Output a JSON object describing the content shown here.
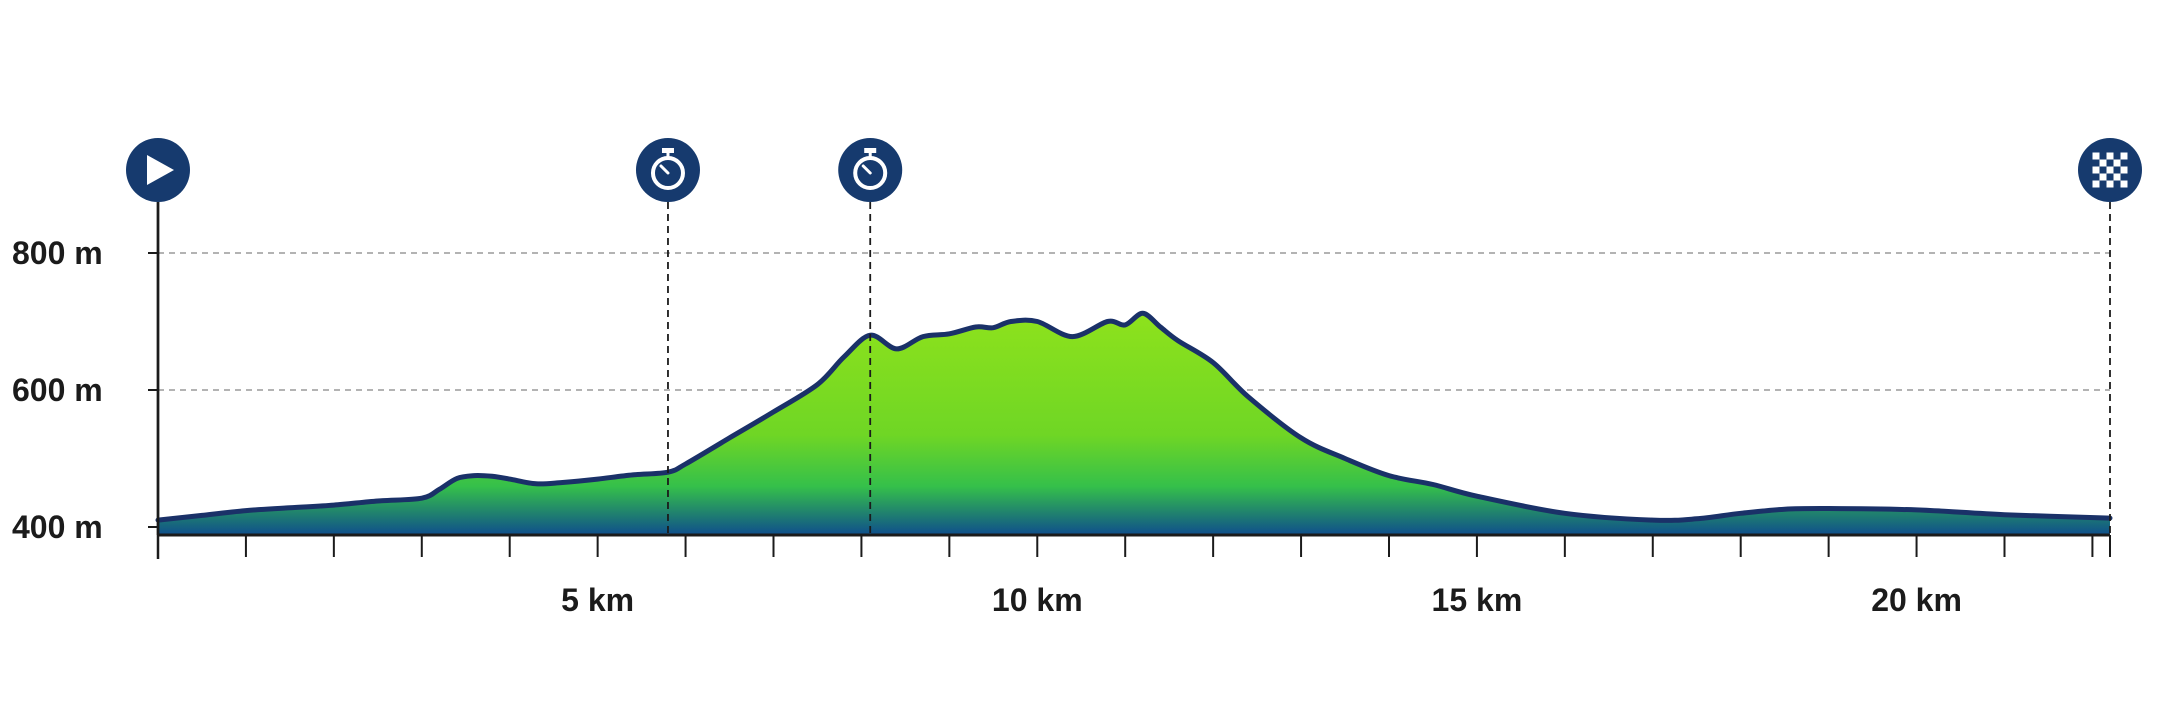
{
  "chart_data": {
    "type": "area",
    "title": "",
    "xlabel": "",
    "ylabel": "",
    "xlim": [
      0,
      22.2
    ],
    "ylim": [
      385,
      880
    ],
    "y_ticks": [
      400,
      600,
      800
    ],
    "y_tick_labels": [
      "400 m",
      "600 m",
      "800 m"
    ],
    "x_major_ticks": [
      5,
      10,
      15,
      20
    ],
    "x_tick_labels": [
      "5 km",
      "10 km",
      "15 km",
      "20 km"
    ],
    "x_minor_step": 1,
    "grid": "horizontal dashed at 600 m and 800 m",
    "series": [
      {
        "x": [
          0,
          0.5,
          1,
          1.5,
          2,
          2.5,
          3,
          3.2,
          3.4,
          3.6,
          3.8,
          4.0,
          4.3,
          4.6,
          5.0,
          5.4,
          5.8,
          6.0,
          6.5,
          7.0,
          7.5,
          7.8,
          8.1,
          8.4,
          8.7,
          9.0,
          9.3,
          9.5,
          9.7,
          10.0,
          10.4,
          10.8,
          11.0,
          11.2,
          11.4,
          11.6,
          12.0,
          12.4,
          13.0,
          13.5,
          14.0,
          14.5,
          15.0,
          16.0,
          17.0,
          17.5,
          18.0,
          18.5,
          19.0,
          20.0,
          21.0,
          22.2
        ],
        "values": [
          410,
          417,
          424,
          428,
          432,
          438,
          442,
          455,
          471,
          475,
          474,
          470,
          463,
          465,
          470,
          476,
          480,
          492,
          530,
          568,
          608,
          648,
          680,
          660,
          678,
          682,
          692,
          691,
          700,
          700,
          678,
          700,
          695,
          712,
          692,
          672,
          640,
          590,
          530,
          500,
          475,
          462,
          445,
          420,
          410,
          412,
          420,
          426,
          427,
          425,
          418,
          413
        ]
      }
    ],
    "markers": [
      {
        "x": 0,
        "icon": "play-icon"
      },
      {
        "x": 5.8,
        "icon": "stopwatch-icon"
      },
      {
        "x": 8.1,
        "icon": "stopwatch-icon"
      },
      {
        "x": 22.2,
        "icon": "checkered-flag-icon"
      }
    ],
    "colors": {
      "outline": "#1a3168",
      "fill_top": "#8ee21c",
      "fill_mid": "#35c04a",
      "fill_bottom": "#0f4e8c",
      "marker_bg": "#163a6e",
      "grid": "#9a9a9a",
      "axis": "#1b1b1b"
    }
  }
}
